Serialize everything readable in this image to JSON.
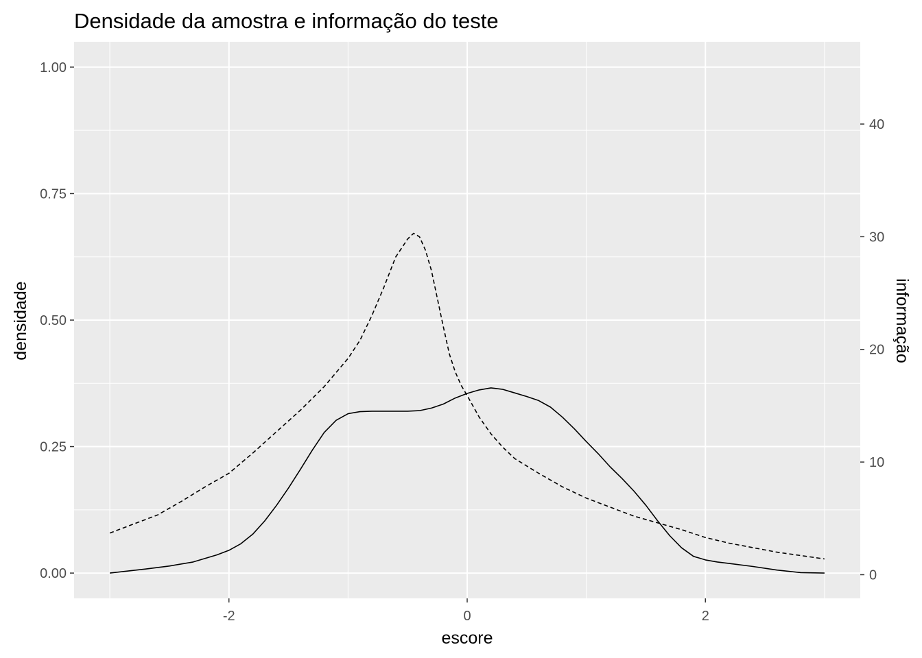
{
  "chart_data": {
    "type": "line",
    "title": "Densidade da amostra e informação do teste",
    "xlabel": "escore",
    "ylabel": "densidade",
    "y2label": "informação",
    "xlim": [
      -3.3,
      3.3
    ],
    "ylim": [
      -0.05,
      1.05
    ],
    "y2lim": [
      -2.1,
      47.3
    ],
    "x_ticks": [
      -2,
      0,
      2
    ],
    "x_tick_labels": [
      "-2",
      "0",
      "2"
    ],
    "y_ticks": [
      0,
      0.25,
      0.5,
      0.75,
      1.0
    ],
    "y_tick_labels": [
      "0.00",
      "0.25",
      "0.50",
      "0.75",
      "1.00"
    ],
    "y2_ticks": [
      0,
      10,
      20,
      30,
      40
    ],
    "y2_tick_labels": [
      "0",
      "10",
      "20",
      "30",
      "40"
    ],
    "grid": true,
    "background": "#ebebeb",
    "grid_color": "#ffffff",
    "line_color": "#000000",
    "series": [
      {
        "axis": "left",
        "style": "solid",
        "x": [
          -3.0,
          -2.7,
          -2.5,
          -2.3,
          -2.1,
          -2.0,
          -1.9,
          -1.8,
          -1.7,
          -1.6,
          -1.5,
          -1.4,
          -1.3,
          -1.2,
          -1.1,
          -1.0,
          -0.9,
          -0.8,
          -0.7,
          -0.6,
          -0.5,
          -0.4,
          -0.3,
          -0.2,
          -0.1,
          0.0,
          0.1,
          0.2,
          0.3,
          0.4,
          0.5,
          0.6,
          0.7,
          0.8,
          0.9,
          1.0,
          1.1,
          1.2,
          1.3,
          1.4,
          1.5,
          1.6,
          1.7,
          1.8,
          1.9,
          2.0,
          2.1,
          2.2,
          2.4,
          2.6,
          2.8,
          3.0
        ],
        "y": [
          0.0,
          0.008,
          0.014,
          0.022,
          0.036,
          0.045,
          0.058,
          0.077,
          0.103,
          0.134,
          0.168,
          0.205,
          0.243,
          0.278,
          0.302,
          0.315,
          0.319,
          0.32,
          0.32,
          0.32,
          0.32,
          0.321,
          0.326,
          0.334,
          0.346,
          0.355,
          0.362,
          0.366,
          0.363,
          0.356,
          0.349,
          0.341,
          0.328,
          0.308,
          0.285,
          0.26,
          0.236,
          0.21,
          0.187,
          0.162,
          0.134,
          0.103,
          0.074,
          0.05,
          0.033,
          0.026,
          0.022,
          0.019,
          0.013,
          0.006,
          0.001,
          0.0
        ]
      },
      {
        "axis": "right",
        "style": "dashed",
        "x": [
          -3.0,
          -2.8,
          -2.6,
          -2.4,
          -2.2,
          -2.0,
          -1.8,
          -1.6,
          -1.4,
          -1.2,
          -1.0,
          -0.9,
          -0.8,
          -0.7,
          -0.6,
          -0.5,
          -0.45,
          -0.4,
          -0.35,
          -0.3,
          -0.25,
          -0.2,
          -0.15,
          -0.1,
          -0.05,
          0.0,
          0.1,
          0.2,
          0.3,
          0.4,
          0.6,
          0.8,
          1.0,
          1.2,
          1.4,
          1.6,
          1.8,
          2.0,
          2.2,
          2.4,
          2.6,
          2.8,
          3.0
        ],
        "y": [
          3.7,
          4.5,
          5.3,
          6.5,
          7.8,
          9.0,
          10.8,
          12.7,
          14.6,
          16.7,
          19.2,
          20.8,
          23.0,
          25.5,
          28.2,
          29.8,
          30.3,
          30.0,
          28.8,
          27.0,
          24.5,
          22.0,
          19.6,
          18.0,
          16.8,
          15.9,
          14.0,
          12.5,
          11.3,
          10.3,
          9.0,
          7.8,
          6.8,
          6.0,
          5.2,
          4.6,
          4.0,
          3.3,
          2.8,
          2.4,
          2.0,
          1.7,
          1.4
        ]
      }
    ]
  }
}
